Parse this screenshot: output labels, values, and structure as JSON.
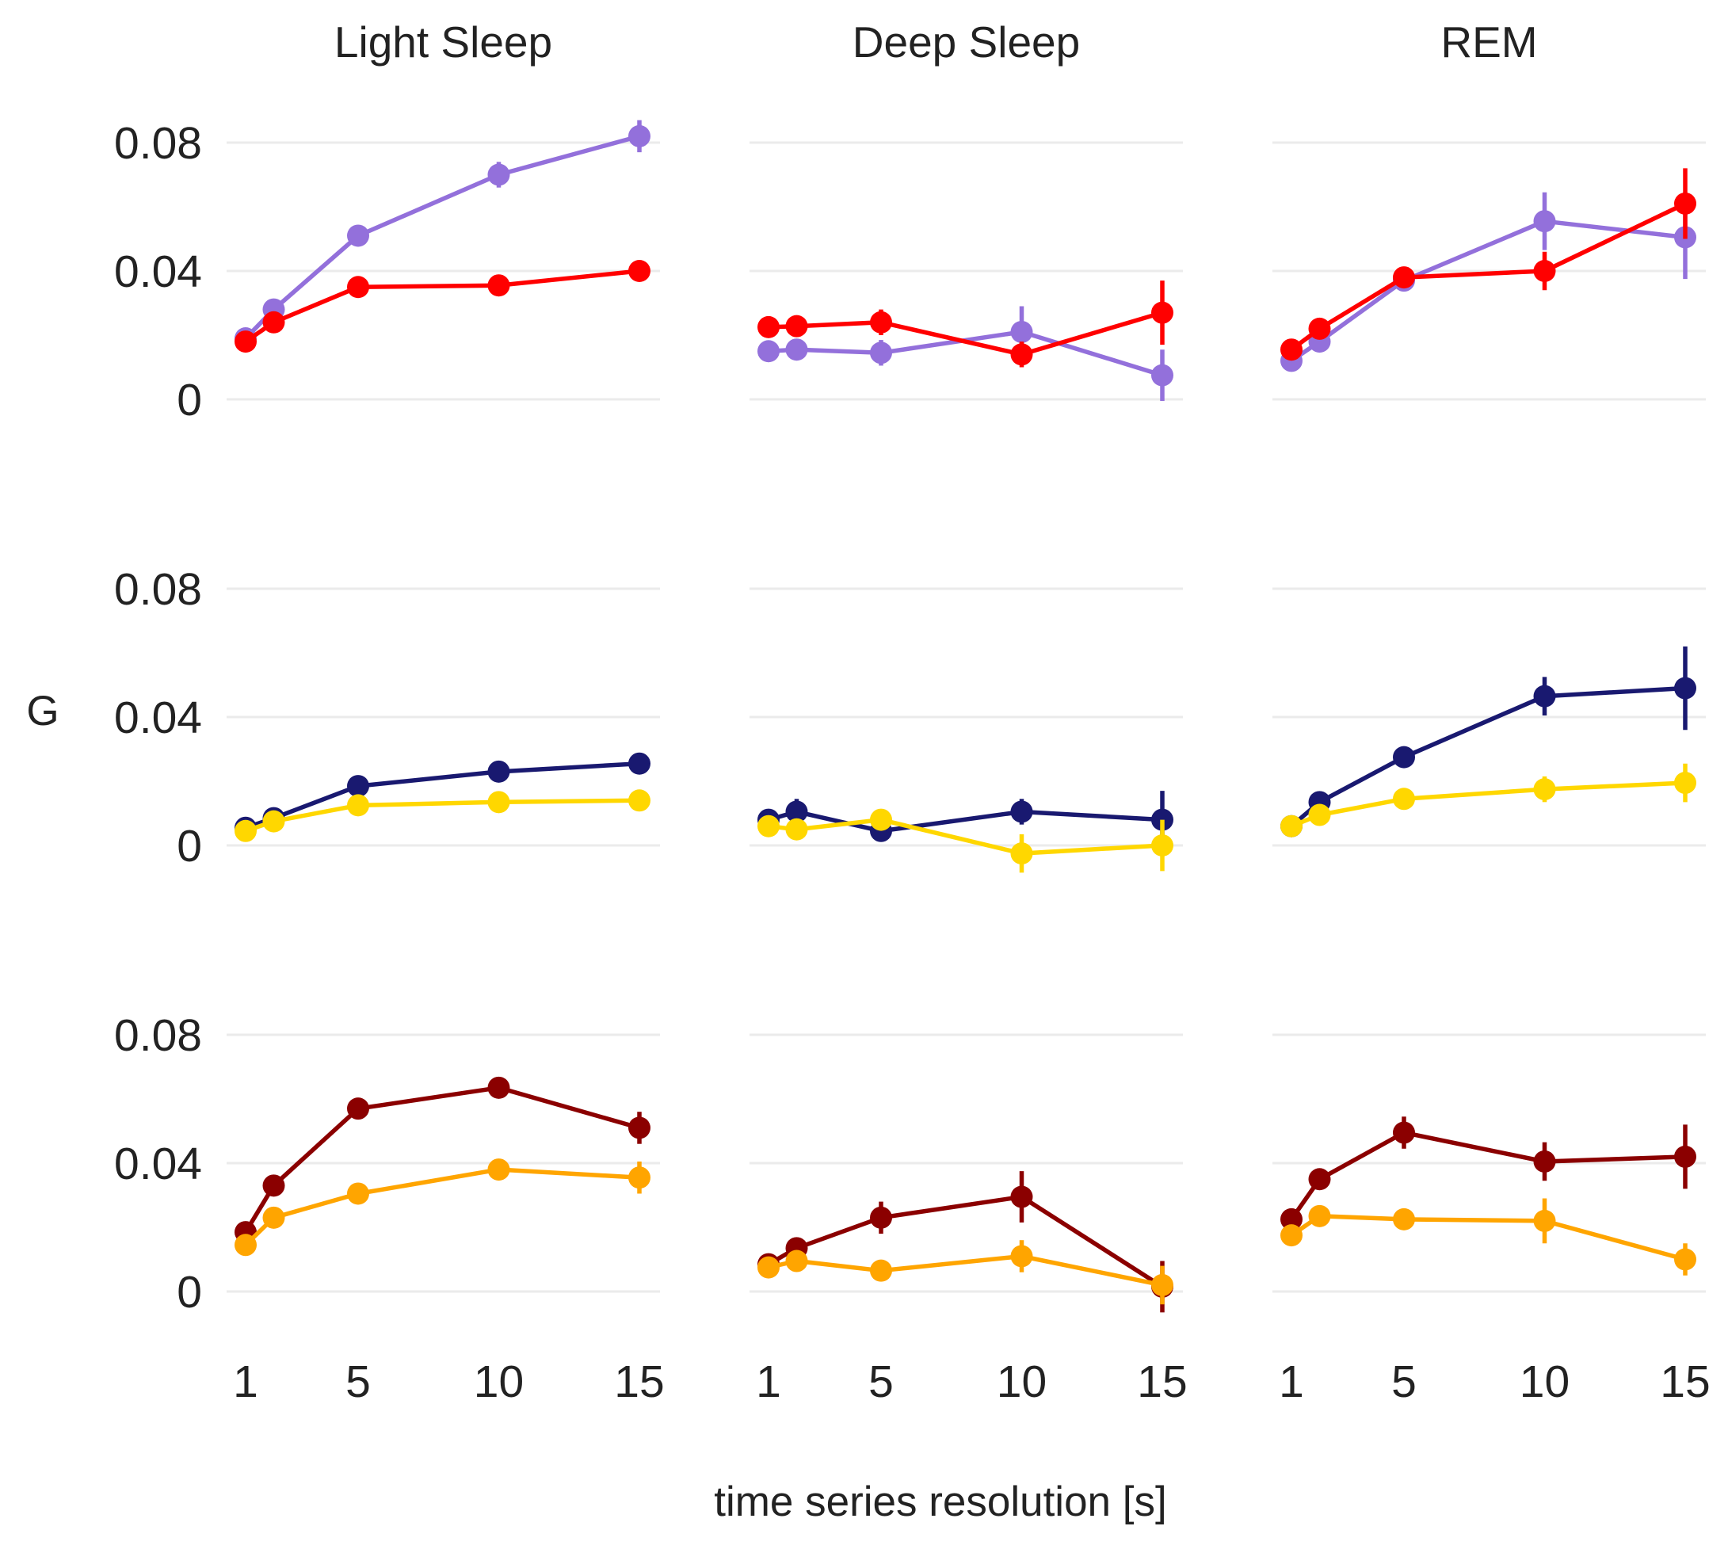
{
  "chart_data": {
    "type": "line",
    "layout": "faceted 3x3 grid",
    "columns": [
      "Light Sleep",
      "Deep Sleep",
      "REM"
    ],
    "x": [
      1,
      2,
      5,
      10,
      15
    ],
    "xticks": [
      1,
      5,
      10,
      15
    ],
    "xlim": [
      0.2,
      15.3
    ],
    "ylim": [
      -0.015,
      0.1
    ],
    "yticks": [
      0,
      0.04,
      0.08
    ],
    "ytick_labels": [
      "0",
      "0.04",
      "0.08"
    ],
    "xlabel": "time series resolution [s]",
    "ylabel": "G",
    "grid": "horizontal",
    "legend": "none",
    "rows": [
      {
        "panels": [
          {
            "series": [
              {
                "color": "#9370DB",
                "values": [
                  0.019,
                  0.028,
                  0.051,
                  0.07,
                  0.082
                ],
                "errors": [
                  0.002,
                  0.002,
                  0.002,
                  0.004,
                  0.005
                ]
              },
              {
                "color": "#FF0000",
                "values": [
                  0.018,
                  0.024,
                  0.035,
                  0.0355,
                  0.04
                ],
                "errors": [
                  0.002,
                  0.002,
                  0.002,
                  0.002,
                  0.003
                ]
              }
            ]
          },
          {
            "series": [
              {
                "color": "#9370DB",
                "values": [
                  0.015,
                  0.0155,
                  0.0145,
                  0.021,
                  0.0075
                ],
                "errors": [
                  0.002,
                  0.002,
                  0.004,
                  0.008,
                  0.008
                ]
              },
              {
                "color": "#FF0000",
                "values": [
                  0.0225,
                  0.0228,
                  0.024,
                  0.014,
                  0.027
                ],
                "errors": [
                  0.002,
                  0.002,
                  0.004,
                  0.004,
                  0.01
                ]
              }
            ]
          },
          {
            "series": [
              {
                "color": "#9370DB",
                "values": [
                  0.012,
                  0.018,
                  0.037,
                  0.0555,
                  0.0505
                ],
                "errors": [
                  0.001,
                  0.002,
                  0.003,
                  0.009,
                  0.013
                ]
              },
              {
                "color": "#FF0000",
                "values": [
                  0.0155,
                  0.022,
                  0.038,
                  0.04,
                  0.061
                ],
                "errors": [
                  0.002,
                  0.002,
                  0.002,
                  0.006,
                  0.011
                ]
              }
            ]
          }
        ]
      },
      {
        "panels": [
          {
            "series": [
              {
                "color": "#191970",
                "values": [
                  0.0055,
                  0.0085,
                  0.0185,
                  0.023,
                  0.0255
                ],
                "errors": [
                  0.001,
                  0.002,
                  0.002,
                  0.002,
                  0.002
                ]
              },
              {
                "color": "#FFD700",
                "values": [
                  0.0045,
                  0.0075,
                  0.0125,
                  0.0135,
                  0.014
                ],
                "errors": [
                  0.001,
                  0.001,
                  0.002,
                  0.002,
                  0.002
                ]
              }
            ]
          },
          {
            "series": [
              {
                "color": "#191970",
                "values": [
                  0.008,
                  0.0105,
                  0.0045,
                  0.0105,
                  0.008
                ],
                "errors": [
                  0.002,
                  0.004,
                  0.002,
                  0.004,
                  0.009
                ]
              },
              {
                "color": "#FFD700",
                "values": [
                  0.006,
                  0.005,
                  0.008,
                  -0.0025,
                  0.0
                ],
                "errors": [
                  0.002,
                  0.002,
                  0.002,
                  0.006,
                  0.008
                ]
              }
            ]
          },
          {
            "series": [
              {
                "color": "#191970",
                "values": [
                  0.006,
                  0.0135,
                  0.0275,
                  0.0465,
                  0.049
                ],
                "errors": [
                  0.001,
                  0.002,
                  0.002,
                  0.006,
                  0.013
                ]
              },
              {
                "color": "#FFD700",
                "values": [
                  0.006,
                  0.0095,
                  0.0145,
                  0.0175,
                  0.0195
                ],
                "errors": [
                  0.001,
                  0.002,
                  0.002,
                  0.004,
                  0.006
                ]
              }
            ]
          }
        ]
      },
      {
        "panels": [
          {
            "series": [
              {
                "color": "#8B0000",
                "values": [
                  0.0185,
                  0.033,
                  0.057,
                  0.0635,
                  0.051
                ],
                "errors": [
                  0.002,
                  0.002,
                  0.002,
                  0.003,
                  0.005
                ]
              },
              {
                "color": "#FFA500",
                "values": [
                  0.0145,
                  0.023,
                  0.0305,
                  0.038,
                  0.0355
                ],
                "errors": [
                  0.002,
                  0.002,
                  0.002,
                  0.002,
                  0.005
                ]
              }
            ]
          },
          {
            "series": [
              {
                "color": "#8B0000",
                "values": [
                  0.0085,
                  0.0135,
                  0.023,
                  0.0295,
                  0.0015
                ],
                "errors": [
                  0.001,
                  0.002,
                  0.005,
                  0.008,
                  0.008
                ]
              },
              {
                "color": "#FFA500",
                "values": [
                  0.0075,
                  0.0095,
                  0.0065,
                  0.011,
                  0.002
                ],
                "errors": [
                  0.001,
                  0.002,
                  0.002,
                  0.005,
                  0.006
                ]
              }
            ]
          },
          {
            "series": [
              {
                "color": "#8B0000",
                "values": [
                  0.0225,
                  0.035,
                  0.0495,
                  0.0405,
                  0.042
                ],
                "errors": [
                  0.002,
                  0.002,
                  0.005,
                  0.006,
                  0.01
                ]
              },
              {
                "color": "#FFA500",
                "values": [
                  0.0175,
                  0.0235,
                  0.0225,
                  0.022,
                  0.01
                ],
                "errors": [
                  0.002,
                  0.002,
                  0.002,
                  0.007,
                  0.005
                ]
              }
            ]
          }
        ]
      }
    ]
  }
}
